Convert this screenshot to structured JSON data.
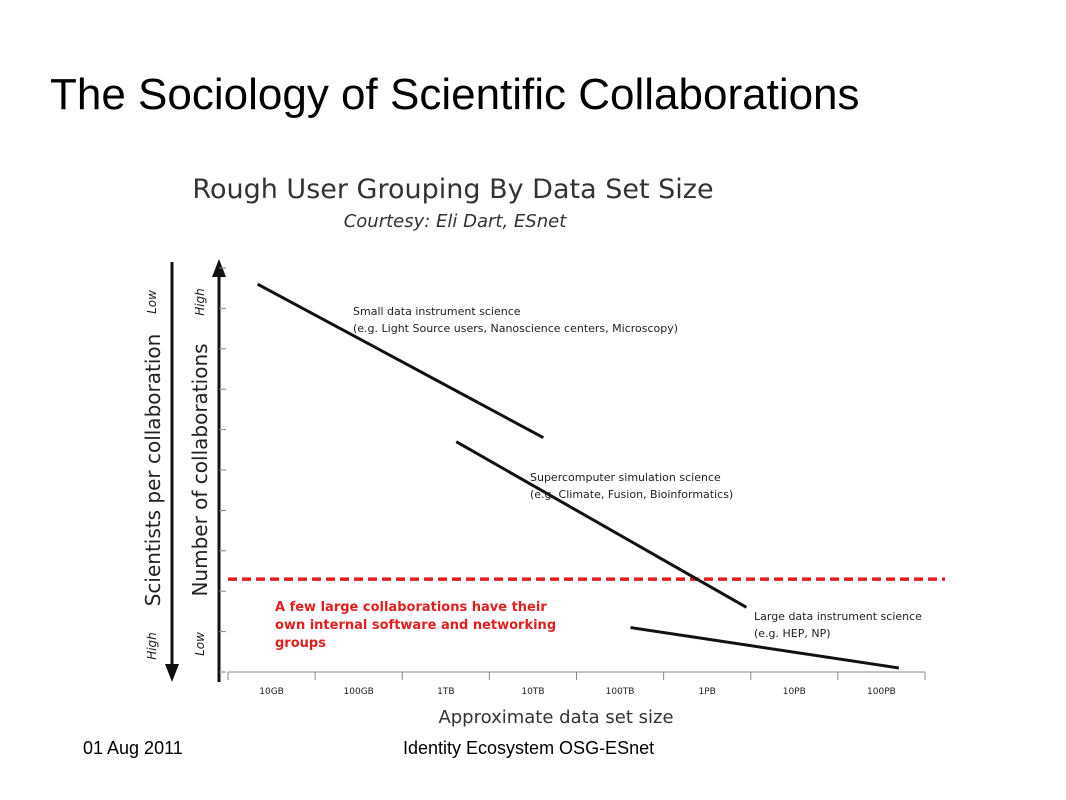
{
  "slide": {
    "title": "The Sociology of Scientific Collaborations",
    "footer_date": "01 Aug 2011",
    "footer_center": "Identity Ecosystem OSG-ESnet"
  },
  "chart_data": {
    "type": "line",
    "title": "Rough User Grouping By Data Set Size",
    "subtitle": "Courtesy: Eli Dart, ESnet",
    "xlabel": "Approximate data set size",
    "ylabel": "Number of collaborations",
    "ylabel_secondary": "Scientists per collaboration",
    "y_high_label": "High",
    "y_low_label": "Low",
    "y2_top_label": "Low",
    "y2_bottom_label": "High",
    "categories": [
      "10GB",
      "100GB",
      "1TB",
      "10TB",
      "100TB",
      "1PB",
      "10PB",
      "100PB"
    ],
    "ylim": [
      0,
      10
    ],
    "series": [
      {
        "name": "Small data instrument science",
        "x": [
          "10GB",
          "10TB"
        ],
        "y": [
          9.6,
          5.8
        ]
      },
      {
        "name": "Supercomputer simulation science",
        "x": [
          "1TB",
          "10PB"
        ],
        "y": [
          5.7,
          1.6
        ]
      },
      {
        "name": "Large data instrument science",
        "x": [
          "100TB",
          "100PB"
        ],
        "y": [
          1.1,
          0.1
        ]
      }
    ],
    "annotations": [
      {
        "title": "Small data instrument science",
        "detail": "(e.g. Light Source users, Nanoscience centers, Microscopy)"
      },
      {
        "title": "Supercomputer simulation science",
        "detail": "(e.g. Climate, Fusion, Bioinformatics)"
      },
      {
        "title": "Large data instrument science",
        "detail": "(e.g. HEP, NP)"
      }
    ],
    "threshold": {
      "y": 2.3,
      "color": "#e02020",
      "lines": [
        "A few large collaborations have their",
        "own internal software and networking",
        "groups"
      ]
    }
  }
}
